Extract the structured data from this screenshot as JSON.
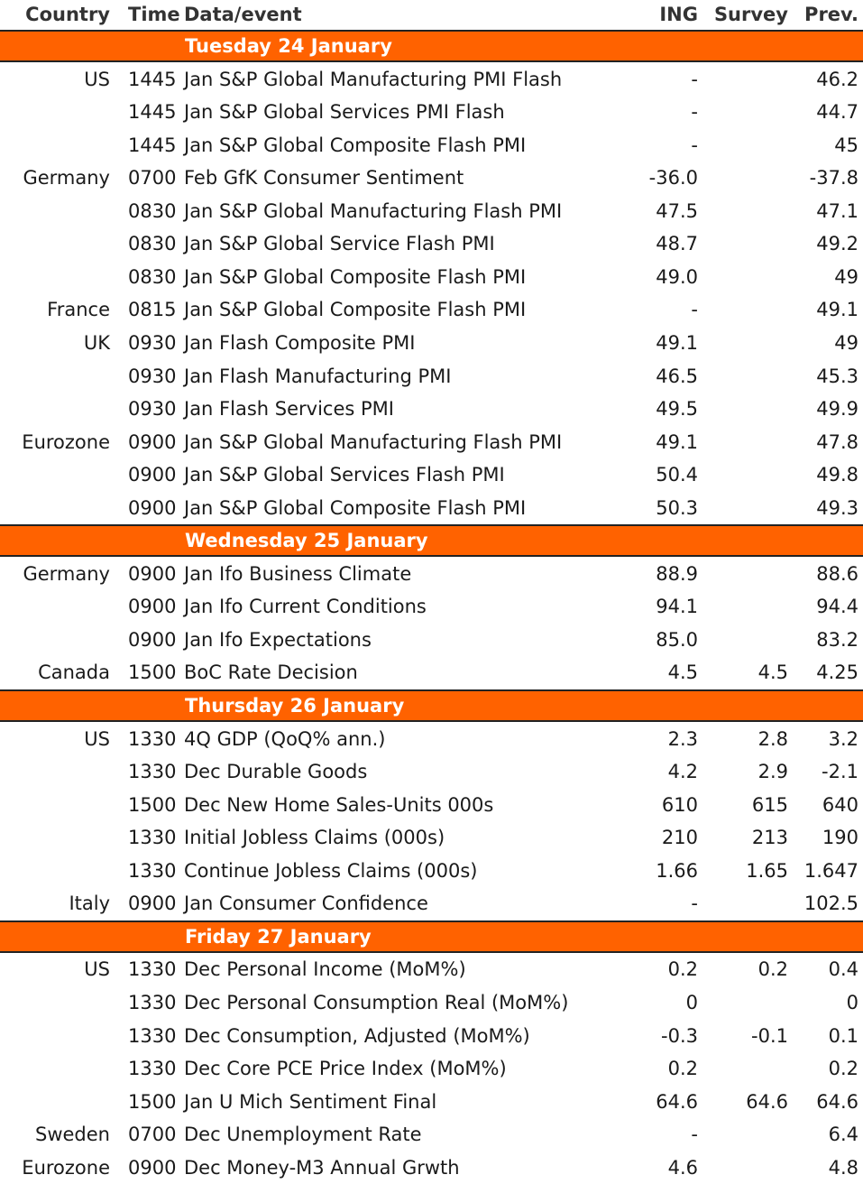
{
  "header": {
    "country": "Country",
    "time": "Time",
    "event": "Data/event",
    "ing": "ING",
    "survey": "Survey",
    "prev": "Prev."
  },
  "days": [
    {
      "title": "Tuesday 24 January",
      "rows": [
        {
          "country": "US",
          "time": "1445",
          "event": "Jan S&P Global Manufacturing PMI Flash",
          "ing": "-",
          "survey": "",
          "prev": "46.2"
        },
        {
          "country": "",
          "time": "1445",
          "event": "Jan S&P Global Services PMI Flash",
          "ing": "-",
          "survey": "",
          "prev": "44.7"
        },
        {
          "country": "",
          "time": "1445",
          "event": "Jan S&P Global Composite Flash PMI",
          "ing": "-",
          "survey": "",
          "prev": "45"
        },
        {
          "country": "Germany",
          "time": "0700",
          "event": "Feb GfK Consumer Sentiment",
          "ing": "-36.0",
          "survey": "",
          "prev": "-37.8"
        },
        {
          "country": "",
          "time": "0830",
          "event": "Jan S&P Global Manufacturing Flash PMI",
          "ing": "47.5",
          "survey": "",
          "prev": "47.1"
        },
        {
          "country": "",
          "time": "0830",
          "event": "Jan S&P Global Service Flash PMI",
          "ing": "48.7",
          "survey": "",
          "prev": "49.2"
        },
        {
          "country": "",
          "time": "0830",
          "event": "Jan S&P Global Composite Flash PMI",
          "ing": "49.0",
          "survey": "",
          "prev": "49"
        },
        {
          "country": "France",
          "time": "0815",
          "event": "Jan S&P Global Composite Flash PMI",
          "ing": "-",
          "survey": "",
          "prev": "49.1"
        },
        {
          "country": "UK",
          "time": "0930",
          "event": "Jan Flash Composite PMI",
          "ing": "49.1",
          "survey": "",
          "prev": "49"
        },
        {
          "country": "",
          "time": "0930",
          "event": "Jan Flash Manufacturing PMI",
          "ing": "46.5",
          "survey": "",
          "prev": "45.3"
        },
        {
          "country": "",
          "time": "0930",
          "event": "Jan Flash Services PMI",
          "ing": "49.5",
          "survey": "",
          "prev": "49.9"
        },
        {
          "country": "Eurozone",
          "time": "0900",
          "event": "Jan S&P Global Manufacturing Flash PMI",
          "ing": "49.1",
          "survey": "",
          "prev": "47.8"
        },
        {
          "country": "",
          "time": "0900",
          "event": "Jan S&P Global Services Flash PMI",
          "ing": "50.4",
          "survey": "",
          "prev": "49.8"
        },
        {
          "country": "",
          "time": "0900",
          "event": "Jan S&P Global Composite Flash PMI",
          "ing": "50.3",
          "survey": "",
          "prev": "49.3"
        }
      ]
    },
    {
      "title": "Wednesday 25 January",
      "rows": [
        {
          "country": "Germany",
          "time": "0900",
          "event": "Jan Ifo Business Climate",
          "ing": "88.9",
          "survey": "",
          "prev": "88.6"
        },
        {
          "country": "",
          "time": "0900",
          "event": "Jan Ifo Current Conditions",
          "ing": "94.1",
          "survey": "",
          "prev": "94.4"
        },
        {
          "country": "",
          "time": "0900",
          "event": "Jan Ifo Expectations",
          "ing": "85.0",
          "survey": "",
          "prev": "83.2"
        },
        {
          "country": "Canada",
          "time": "1500",
          "event": "BoC Rate Decision",
          "ing": "4.5",
          "survey": "4.5",
          "prev": "4.25"
        }
      ]
    },
    {
      "title": "Thursday 26 January",
      "rows": [
        {
          "country": "US",
          "time": "1330",
          "event": "4Q GDP (QoQ% ann.)",
          "ing": "2.3",
          "survey": "2.8",
          "prev": "3.2"
        },
        {
          "country": "",
          "time": "1330",
          "event": "Dec Durable Goods",
          "ing": "4.2",
          "survey": "2.9",
          "prev": "-2.1"
        },
        {
          "country": "",
          "time": "1500",
          "event": "Dec New Home Sales-Units 000s",
          "ing": "610",
          "survey": "615",
          "prev": "640"
        },
        {
          "country": "",
          "time": "1330",
          "event": "Initial Jobless Claims  (000s)",
          "ing": "210",
          "survey": "213",
          "prev": "190"
        },
        {
          "country": "",
          "time": "1330",
          "event": "Continue Jobless Claims (000s)",
          "ing": "1.66",
          "survey": "1.65",
          "prev": "1.647"
        },
        {
          "country": "Italy",
          "time": "0900",
          "event": "Jan Consumer Confidence",
          "ing": "-",
          "survey": "",
          "prev": "102.5"
        }
      ]
    },
    {
      "title": "Friday 27 January",
      "rows": [
        {
          "country": "US",
          "time": "1330",
          "event": "Dec Personal Income (MoM%)",
          "ing": "0.2",
          "survey": "0.2",
          "prev": "0.4"
        },
        {
          "country": "",
          "time": "1330",
          "event": "Dec Personal Consumption Real (MoM%)",
          "ing": "0",
          "survey": "",
          "prev": "0"
        },
        {
          "country": "",
          "time": "1330",
          "event": "Dec Consumption, Adjusted (MoM%)",
          "ing": "-0.3",
          "survey": "-0.1",
          "prev": "0.1"
        },
        {
          "country": "",
          "time": "1330",
          "event": "Dec Core PCE Price Index (MoM%)",
          "ing": "0.2",
          "survey": "",
          "prev": "0.2"
        },
        {
          "country": "",
          "time": "1500",
          "event": "Jan U Mich Sentiment Final",
          "ing": "64.6",
          "survey": "64.6",
          "prev": "64.6"
        },
        {
          "country": "Sweden",
          "time": "0700",
          "event": "Dec Unemployment Rate",
          "ing": "-",
          "survey": "",
          "prev": "6.4"
        },
        {
          "country": "Eurozone",
          "time": "0900",
          "event": "Dec Money-M3 Annual Grwth",
          "ing": "4.6",
          "survey": "",
          "prev": "4.8"
        }
      ]
    }
  ]
}
